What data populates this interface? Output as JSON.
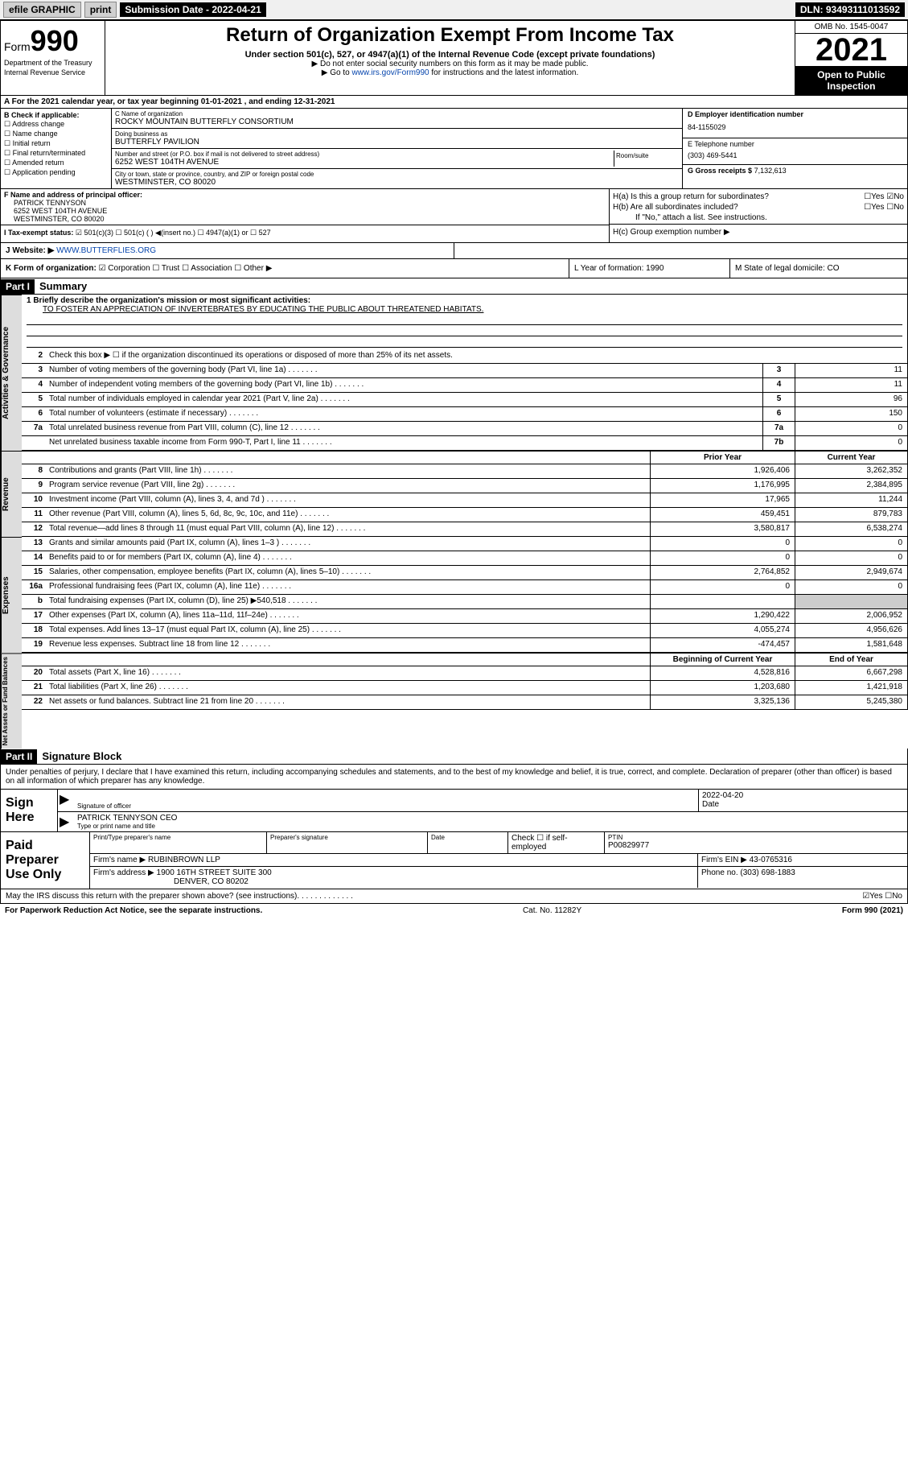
{
  "topbar": {
    "efile": "efile GRAPHIC",
    "print": "print",
    "sub_label": "Submission Date - 2022-04-21",
    "dln": "DLN: 93493111013592"
  },
  "header": {
    "form_label": "Form",
    "form_number": "990",
    "dept": "Department of the Treasury",
    "irs": "Internal Revenue Service",
    "title": "Return of Organization Exempt From Income Tax",
    "subtitle": "Under section 501(c), 527, or 4947(a)(1) of the Internal Revenue Code (except private foundations)",
    "note1": "▶ Do not enter social security numbers on this form as it may be made public.",
    "note2_pre": "▶ Go to ",
    "note2_link": "www.irs.gov/Form990",
    "note2_post": " for instructions and the latest information.",
    "omb": "OMB No. 1545-0047",
    "year": "2021",
    "open": "Open to Public Inspection"
  },
  "row_a": "A For the 2021 calendar year, or tax year beginning 01-01-2021   , and ending 12-31-2021",
  "col_b": {
    "hdr": "B Check if applicable:",
    "items": [
      "Address change",
      "Name change",
      "Initial return",
      "Final return/terminated",
      "Amended return",
      "Application pending"
    ]
  },
  "col_c": {
    "name_lbl": "C Name of organization",
    "name": "ROCKY MOUNTAIN BUTTERFLY CONSORTIUM",
    "dba_lbl": "Doing business as",
    "dba": "BUTTERFLY PAVILION",
    "addr_lbl": "Number and street (or P.O. box if mail is not delivered to street address)",
    "addr": "6252 WEST 104TH AVENUE",
    "room_lbl": "Room/suite",
    "city_lbl": "City or town, state or province, country, and ZIP or foreign postal code",
    "city": "WESTMINSTER, CO  80020"
  },
  "col_d": {
    "ein_lbl": "D Employer identification number",
    "ein": "84-1155029",
    "tel_lbl": "E Telephone number",
    "tel": "(303) 469-5441",
    "gross_lbl": "G Gross receipts $",
    "gross": "7,132,613"
  },
  "col_f": {
    "lbl": "F Name and address of principal officer:",
    "name": "PATRICK TENNYSON",
    "addr1": "6252 WEST 104TH AVENUE",
    "addr2": "WESTMINSTER, CO  80020"
  },
  "col_h": {
    "a": "H(a)  Is this a group return for subordinates?",
    "a_ans": "☐Yes ☑No",
    "b": "H(b)  Are all subordinates included?",
    "b_ans": "☐Yes ☐No",
    "b_note": "If \"No,\" attach a list. See instructions.",
    "c": "H(c)  Group exemption number ▶"
  },
  "row_i": {
    "label": "I  Tax-exempt status:",
    "opts": "☑ 501(c)(3)   ☐ 501(c) (  ) ◀(insert no.)   ☐ 4947(a)(1) or  ☐ 527"
  },
  "row_j": {
    "label": "J  Website: ▶",
    "url": "WWW.BUTTERFLIES.ORG"
  },
  "row_k": {
    "label": "K Form of organization:",
    "opts": "☑ Corporation  ☐ Trust  ☐ Association  ☐ Other ▶",
    "l": "L Year of formation: 1990",
    "m": "M State of legal domicile: CO"
  },
  "part1": {
    "hdr": "Part I",
    "title": "Summary"
  },
  "vtabs": {
    "ag": "Activities & Governance",
    "rev": "Revenue",
    "exp": "Expenses",
    "na": "Net Assets or Fund Balances"
  },
  "mission": {
    "lbl": "1  Briefly describe the organization's mission or most significant activities:",
    "text": "TO FOSTER AN APPRECIATION OF INVERTEBRATES BY EDUCATING THE PUBLIC ABOUT THREATENED HABITATS."
  },
  "line2": "Check this box ▶ ☐  if the organization discontinued its operations or disposed of more than 25% of its net assets.",
  "lines_ag": [
    {
      "n": "3",
      "d": "Number of voting members of the governing body (Part VI, line 1a)",
      "k": "3",
      "v": "11"
    },
    {
      "n": "4",
      "d": "Number of independent voting members of the governing body (Part VI, line 1b)",
      "k": "4",
      "v": "11"
    },
    {
      "n": "5",
      "d": "Total number of individuals employed in calendar year 2021 (Part V, line 2a)",
      "k": "5",
      "v": "96"
    },
    {
      "n": "6",
      "d": "Total number of volunteers (estimate if necessary)",
      "k": "6",
      "v": "150"
    },
    {
      "n": "7a",
      "d": "Total unrelated business revenue from Part VIII, column (C), line 12",
      "k": "7a",
      "v": "0"
    },
    {
      "n": "",
      "d": "Net unrelated business taxable income from Form 990-T, Part I, line 11",
      "k": "7b",
      "v": "0"
    }
  ],
  "col_hdrs": {
    "prior": "Prior Year",
    "current": "Current Year",
    "beg": "Beginning of Current Year",
    "end": "End of Year"
  },
  "lines_rev": [
    {
      "n": "8",
      "d": "Contributions and grants (Part VIII, line 1h)",
      "p": "1,926,406",
      "c": "3,262,352"
    },
    {
      "n": "9",
      "d": "Program service revenue (Part VIII, line 2g)",
      "p": "1,176,995",
      "c": "2,384,895"
    },
    {
      "n": "10",
      "d": "Investment income (Part VIII, column (A), lines 3, 4, and 7d )",
      "p": "17,965",
      "c": "11,244"
    },
    {
      "n": "11",
      "d": "Other revenue (Part VIII, column (A), lines 5, 6d, 8c, 9c, 10c, and 11e)",
      "p": "459,451",
      "c": "879,783"
    },
    {
      "n": "12",
      "d": "Total revenue—add lines 8 through 11 (must equal Part VIII, column (A), line 12)",
      "p": "3,580,817",
      "c": "6,538,274"
    }
  ],
  "lines_exp": [
    {
      "n": "13",
      "d": "Grants and similar amounts paid (Part IX, column (A), lines 1–3 )",
      "p": "0",
      "c": "0"
    },
    {
      "n": "14",
      "d": "Benefits paid to or for members (Part IX, column (A), line 4)",
      "p": "0",
      "c": "0"
    },
    {
      "n": "15",
      "d": "Salaries, other compensation, employee benefits (Part IX, column (A), lines 5–10)",
      "p": "2,764,852",
      "c": "2,949,674"
    },
    {
      "n": "16a",
      "d": "Professional fundraising fees (Part IX, column (A), line 11e)",
      "p": "0",
      "c": "0"
    },
    {
      "n": "b",
      "d": "Total fundraising expenses (Part IX, column (D), line 25) ▶540,518",
      "p": "",
      "c": "",
      "shade": true
    },
    {
      "n": "17",
      "d": "Other expenses (Part IX, column (A), lines 11a–11d, 11f–24e)",
      "p": "1,290,422",
      "c": "2,006,952"
    },
    {
      "n": "18",
      "d": "Total expenses. Add lines 13–17 (must equal Part IX, column (A), line 25)",
      "p": "4,055,274",
      "c": "4,956,626"
    },
    {
      "n": "19",
      "d": "Revenue less expenses. Subtract line 18 from line 12",
      "p": "-474,457",
      "c": "1,581,648"
    }
  ],
  "lines_na": [
    {
      "n": "20",
      "d": "Total assets (Part X, line 16)",
      "p": "4,528,816",
      "c": "6,667,298"
    },
    {
      "n": "21",
      "d": "Total liabilities (Part X, line 26)",
      "p": "1,203,680",
      "c": "1,421,918"
    },
    {
      "n": "22",
      "d": "Net assets or fund balances. Subtract line 21 from line 20",
      "p": "3,325,136",
      "c": "5,245,380"
    }
  ],
  "part2": {
    "hdr": "Part II",
    "title": "Signature Block"
  },
  "sig": {
    "intro": "Under penalties of perjury, I declare that I have examined this return, including accompanying schedules and statements, and to the best of my knowledge and belief, it is true, correct, and complete. Declaration of preparer (other than officer) is based on all information of which preparer has any knowledge.",
    "sign_here": "Sign Here",
    "officer_lbl": "Signature of officer",
    "date_lbl": "Date",
    "date": "2022-04-20",
    "name": "PATRICK TENNYSON  CEO",
    "name_lbl": "Type or print name and title"
  },
  "prep": {
    "label": "Paid Preparer Use Only",
    "r1": {
      "c1_lbl": "Print/Type preparer's name",
      "c2_lbl": "Preparer's signature",
      "c3_lbl": "Date",
      "c4": "Check ☐ if self-employed",
      "c5_lbl": "PTIN",
      "c5": "P00829977"
    },
    "r2": {
      "lbl": "Firm's name    ▶",
      "val": "RUBINBROWN LLP",
      "ein_lbl": "Firm's EIN ▶",
      "ein": "43-0765316"
    },
    "r3": {
      "lbl": "Firm's address ▶",
      "val1": "1900 16TH STREET SUITE 300",
      "val2": "DENVER, CO  80202",
      "ph_lbl": "Phone no.",
      "ph": "(303) 698-1883"
    }
  },
  "footer": {
    "discuss": "May the IRS discuss this return with the preparer shown above? (see instructions)",
    "ans": "☑Yes  ☐No",
    "pra": "For Paperwork Reduction Act Notice, see the separate instructions.",
    "cat": "Cat. No. 11282Y",
    "form": "Form 990 (2021)"
  }
}
